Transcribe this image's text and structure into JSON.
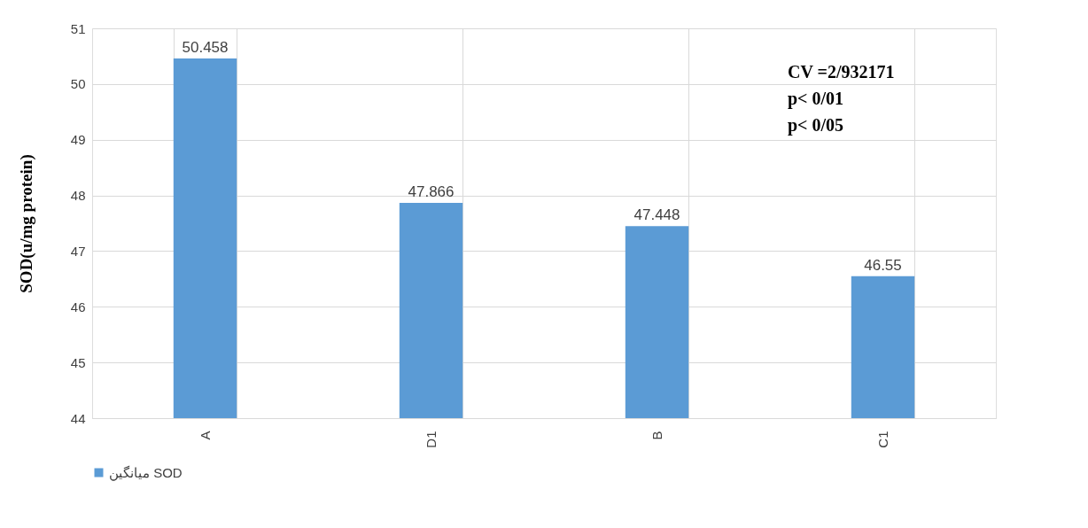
{
  "chart_data": {
    "type": "bar",
    "ylabel": "SOD(u/mg protein)",
    "categories": [
      "A",
      "D1",
      "B",
      "C1"
    ],
    "series": [
      {
        "name": "میانگین SOD",
        "color": "#5b9bd5",
        "values": [
          50.458,
          47.866,
          47.448,
          46.55
        ]
      }
    ],
    "ylim": [
      44,
      51
    ],
    "yticks": [
      44,
      45,
      46,
      47,
      48,
      49,
      50,
      51
    ],
    "grid": true,
    "legend": "bottom",
    "data_labels": true,
    "annotations": [
      "CV =2/932171",
      "p< 0/01",
      "p< 0/05"
    ]
  }
}
